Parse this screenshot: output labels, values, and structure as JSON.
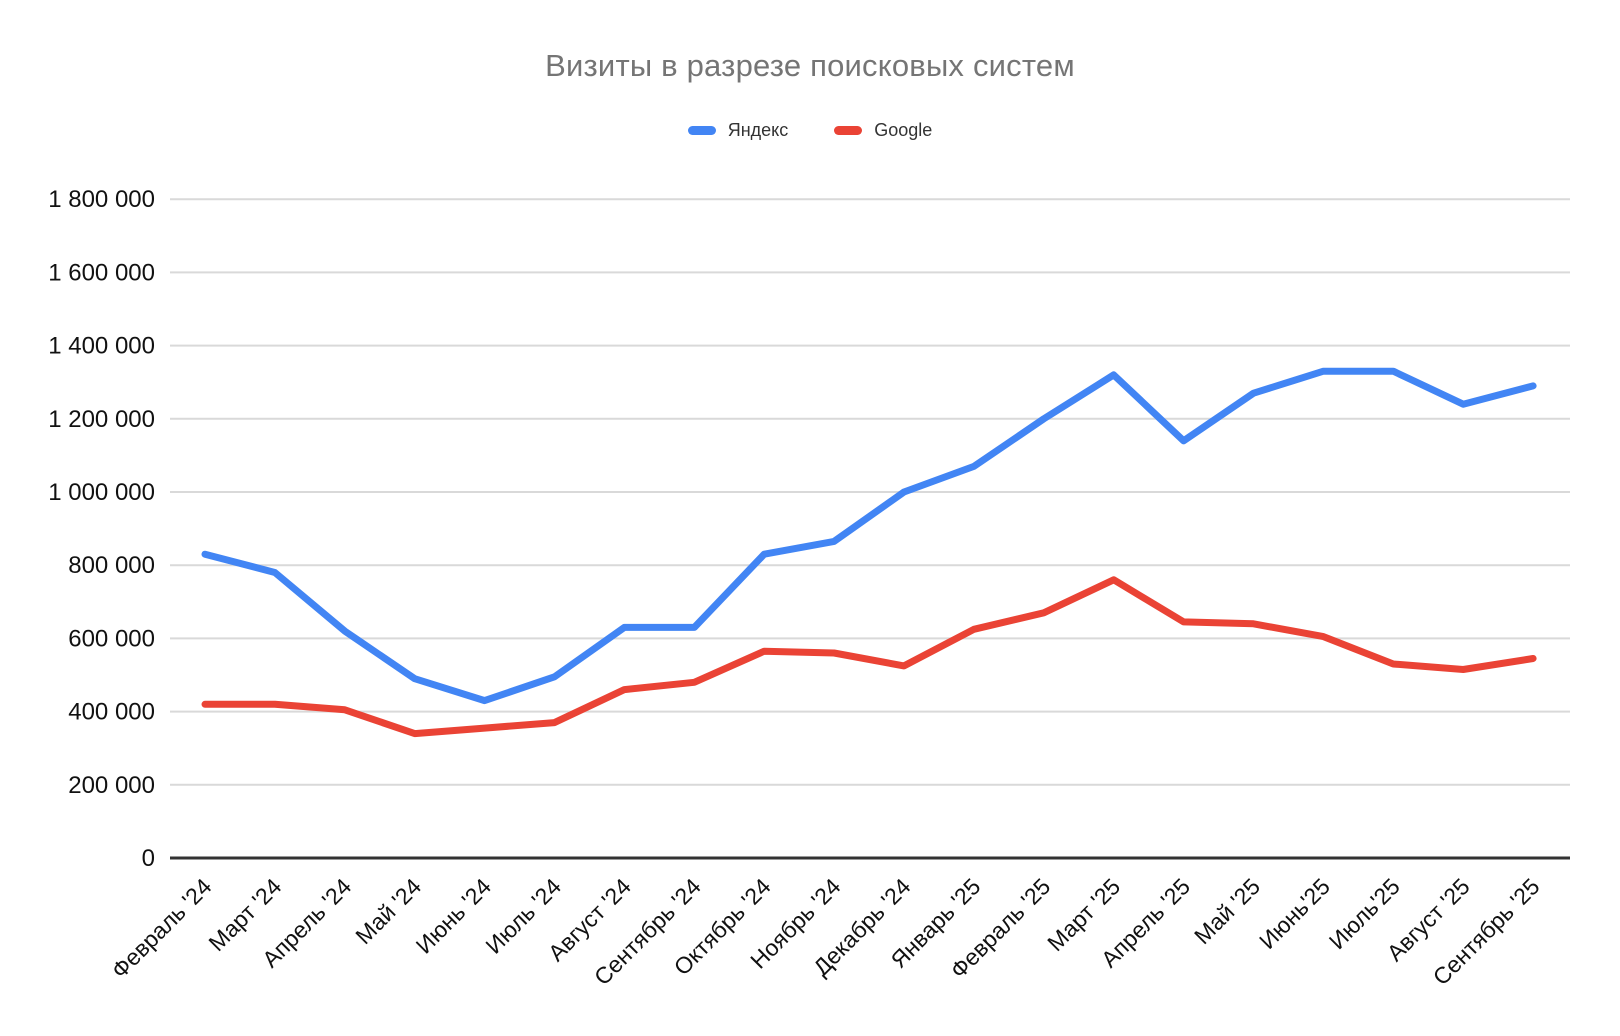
{
  "page": {
    "background": "#ffffff"
  },
  "header": {
    "title": "Визиты в разрезе поисковых систем",
    "title_color": "#757575"
  },
  "legend": {
    "position": "top",
    "items": [
      {
        "label": "Яндекс",
        "color": "#4285f4"
      },
      {
        "label": "Google",
        "color": "#ea4335"
      }
    ]
  },
  "axes": {
    "y_tick_labels": [
      "0",
      "200 000",
      "400 000",
      "600 000",
      "800 000",
      "1 000 000",
      "1 200 000",
      "1 400 000",
      "1 600 000",
      "1 800 000"
    ],
    "x_tick_labels": [
      "Февраль '24",
      "Март '24",
      "Апрель '24",
      "Май '24",
      "Июнь '24",
      "Июль '24",
      "Август '24",
      "Сентябрь '24",
      "Октябрь '24",
      "Ноябрь '24",
      "Декабрь '24",
      "Январь '25",
      "Февраль '25",
      "Март '25",
      "Апрель '25",
      "Май '25",
      "Июнь'25",
      "Июль'25",
      "Август '25",
      "Сентябрь '25"
    ]
  },
  "style": {
    "gridline_color": "#d9d9d9",
    "baseline_color": "#333333",
    "tick_label_color": "#111111"
  },
  "chart_data": {
    "type": "line",
    "title": "Визиты в разрезе поисковых систем",
    "xlabel": "",
    "ylabel": "",
    "grid": true,
    "legend_position": "top",
    "ylim": [
      0,
      1800000
    ],
    "ytick_step": 200000,
    "categories": [
      "Февраль '24",
      "Март '24",
      "Апрель '24",
      "Май '24",
      "Июнь '24",
      "Июль '24",
      "Август '24",
      "Сентябрь '24",
      "Октябрь '24",
      "Ноябрь '24",
      "Декабрь '24",
      "Январь '25",
      "Февраль '25",
      "Март '25",
      "Апрель '25",
      "Май '25",
      "Июнь'25",
      "Июль'25",
      "Август '25",
      "Сентябрь '25"
    ],
    "series": [
      {
        "name": "Яндекс",
        "color": "#4285f4",
        "values": [
          830000,
          780000,
          620000,
          490000,
          430000,
          495000,
          630000,
          630000,
          830000,
          865000,
          1000000,
          1070000,
          1200000,
          1320000,
          1140000,
          1270000,
          1330000,
          1330000,
          1240000,
          1290000
        ]
      },
      {
        "name": "Google",
        "color": "#ea4335",
        "values": [
          420000,
          420000,
          405000,
          340000,
          355000,
          370000,
          460000,
          480000,
          565000,
          560000,
          525000,
          625000,
          670000,
          760000,
          645000,
          640000,
          605000,
          530000,
          515000,
          545000
        ]
      }
    ]
  }
}
